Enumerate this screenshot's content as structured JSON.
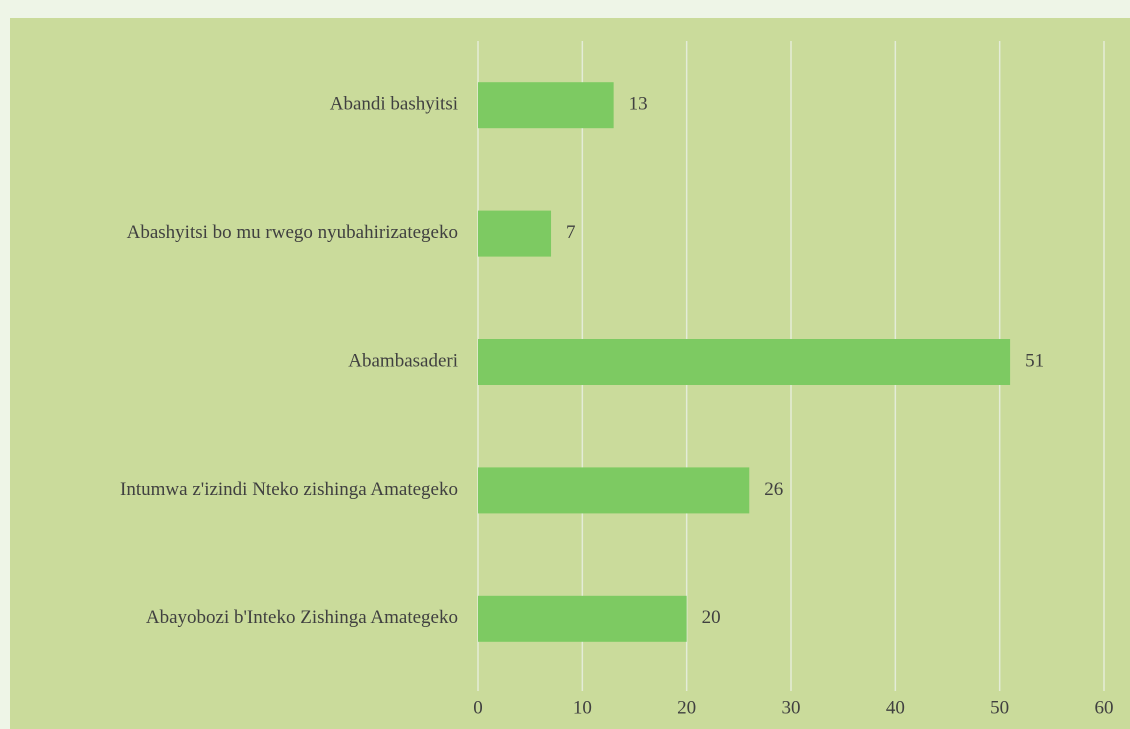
{
  "chart_data": {
    "type": "hbar",
    "categories": [
      "Abandi bashyitsi",
      "Abashyitsi bo mu rwego nyubahirizategeko",
      "Abambasaderi",
      "Intumwa z'izindi Nteko zishinga Amategeko",
      "Abayobozi b'Inteko Zishinga Amategeko"
    ],
    "values": [
      13,
      7,
      51,
      26,
      20
    ],
    "color": "#7dca62",
    "xlim": [
      0,
      60
    ],
    "xticks": [
      0,
      10,
      20,
      30,
      40,
      50,
      60
    ],
    "grid": true
  }
}
